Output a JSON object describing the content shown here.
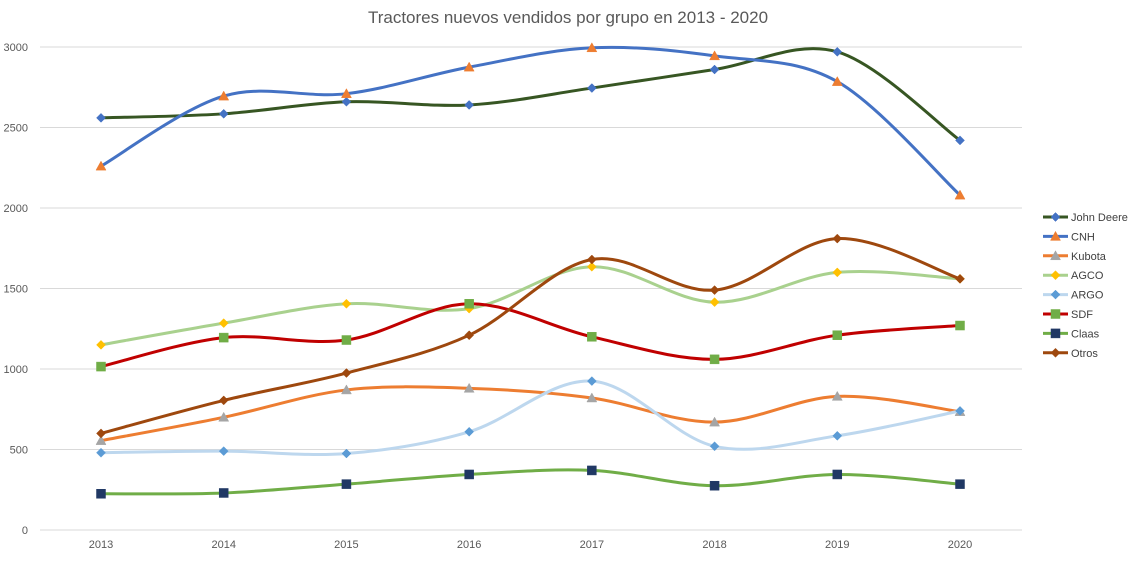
{
  "chart_data": {
    "type": "line",
    "title": "Tractores nuevos vendidos por grupo en 2013 - 2020",
    "xlabel": "",
    "ylabel": "",
    "categories": [
      "2013",
      "2014",
      "2015",
      "2016",
      "2017",
      "2018",
      "2019",
      "2020"
    ],
    "ylim": [
      0,
      3000
    ],
    "yticks": [
      "0",
      "500",
      "1000",
      "1500",
      "2000",
      "2500",
      "3000"
    ],
    "grid": true,
    "smooth": true,
    "legend_position": "right",
    "series": [
      {
        "name": "John Deere",
        "line_color": "#375623",
        "marker_color": "#4472c4",
        "marker": "diamond",
        "values": [
          2560,
          2585,
          2660,
          2640,
          2745,
          2860,
          2970,
          2420
        ]
      },
      {
        "name": "CNH",
        "line_color": "#4472c4",
        "marker_color": "#ed7d31",
        "marker": "triangle",
        "values": [
          2260,
          2695,
          2710,
          2875,
          2995,
          2945,
          2785,
          2080
        ]
      },
      {
        "name": "Kubota",
        "line_color": "#ed7d31",
        "marker_color": "#a5a5a5",
        "marker": "triangle",
        "values": [
          555,
          700,
          870,
          880,
          820,
          670,
          830,
          735
        ]
      },
      {
        "name": "AGCO",
        "line_color": "#a9d18e",
        "marker_color": "#ffc000",
        "marker": "diamond",
        "values": [
          1150,
          1285,
          1405,
          1375,
          1635,
          1415,
          1600,
          1560
        ]
      },
      {
        "name": "ARGO",
        "line_color": "#bdd7ee",
        "marker_color": "#5b9bd5",
        "marker": "diamond",
        "values": [
          480,
          490,
          475,
          610,
          925,
          520,
          585,
          740
        ]
      },
      {
        "name": "SDF",
        "line_color": "#c00000",
        "marker_color": "#70ad47",
        "marker": "square",
        "values": [
          1015,
          1195,
          1180,
          1405,
          1200,
          1060,
          1210,
          1270
        ]
      },
      {
        "name": "Claas",
        "line_color": "#70ad47",
        "marker_color": "#203864",
        "marker": "square",
        "values": [
          225,
          230,
          285,
          345,
          370,
          275,
          345,
          285
        ]
      },
      {
        "name": "Otros",
        "line_color": "#9e480e",
        "marker_color": "#9e480e",
        "marker": "diamond",
        "values": [
          600,
          805,
          975,
          1210,
          1680,
          1490,
          1810,
          1560
        ]
      }
    ]
  }
}
